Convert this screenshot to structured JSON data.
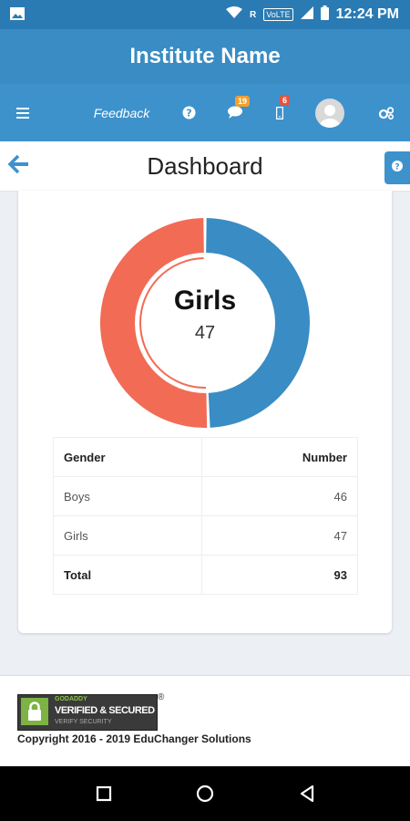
{
  "status_bar": {
    "time": "12:24 PM",
    "network_label": "VoLTE",
    "roaming": "R"
  },
  "app": {
    "title": "Institute Name"
  },
  "nav": {
    "feedback_label": "Feedback",
    "messages_badge": "19",
    "notifications_badge": "6"
  },
  "page": {
    "title": "Dashboard"
  },
  "chart_data": {
    "type": "pie",
    "categories": [
      "Boys",
      "Girls"
    ],
    "values": [
      46,
      47
    ],
    "center_label": "Girls",
    "center_value": "47",
    "colors": {
      "Boys": "#3a8cc4",
      "Girls": "#f26b55"
    }
  },
  "table": {
    "headers": [
      "Gender",
      "Number"
    ],
    "rows": [
      {
        "gender": "Boys",
        "number": "46"
      },
      {
        "gender": "Girls",
        "number": "47"
      }
    ],
    "total": {
      "label": "Total",
      "number": "93"
    }
  },
  "footer": {
    "seal_brand": "GODADDY",
    "seal_title": "VERIFIED & SECURED",
    "seal_subtitle": "VERIFY SECURITY",
    "copyright": "Copyright 2016 - 2019 EduChanger Solutions"
  },
  "colors": {
    "primary": "#3d92cc",
    "accent_red": "#f26b55",
    "badge_orange": "#f0a030",
    "badge_red": "#e5533c"
  }
}
